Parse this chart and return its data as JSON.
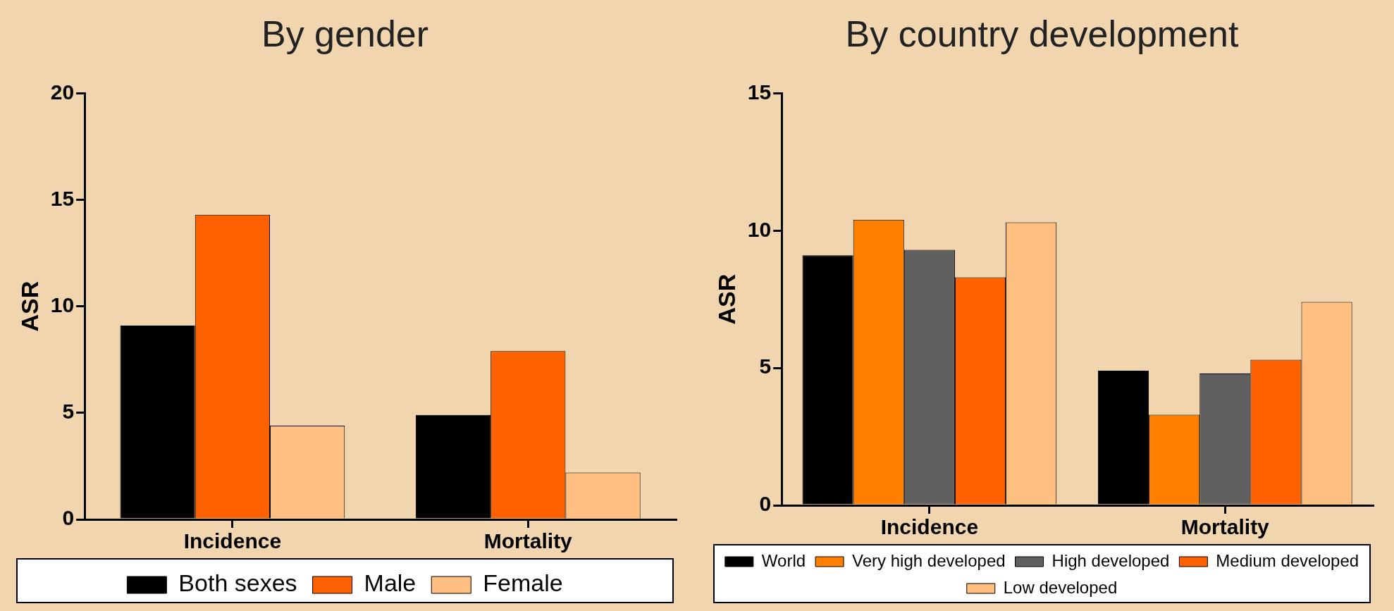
{
  "chart_data": [
    {
      "type": "bar",
      "title": "By gender",
      "ylabel": "ASR",
      "categories": [
        "Incidence",
        "Mortality"
      ],
      "series": [
        {
          "name": "Both sexes",
          "color": "#000000",
          "values": [
            9.1,
            4.9
          ]
        },
        {
          "name": "Male",
          "color": "#ff6000",
          "values": [
            14.3,
            7.9
          ]
        },
        {
          "name": "Female",
          "color": "#ffbf80",
          "values": [
            4.4,
            2.2
          ]
        }
      ],
      "ylim": [
        0,
        20
      ],
      "yticks": [
        0,
        5,
        10,
        15,
        20
      ],
      "grid": false,
      "legend": "bottom"
    },
    {
      "type": "bar",
      "title": "By country development",
      "ylabel": "ASR",
      "categories": [
        "Incidence",
        "Mortality"
      ],
      "series": [
        {
          "name": "World",
          "color": "#000000",
          "values": [
            9.1,
            4.9
          ]
        },
        {
          "name": "Very high developed",
          "color": "#ff8000",
          "values": [
            10.4,
            3.3
          ]
        },
        {
          "name": "High developed",
          "color": "#606060",
          "values": [
            9.3,
            4.8
          ]
        },
        {
          "name": "Medium developed",
          "color": "#ff6000",
          "values": [
            8.3,
            5.3
          ]
        },
        {
          "name": "Low developed",
          "color": "#ffbf80",
          "values": [
            10.3,
            7.4
          ]
        }
      ],
      "ylim": [
        0,
        15
      ],
      "yticks": [
        0,
        5,
        10,
        15
      ],
      "grid": false,
      "legend": "bottom"
    }
  ]
}
